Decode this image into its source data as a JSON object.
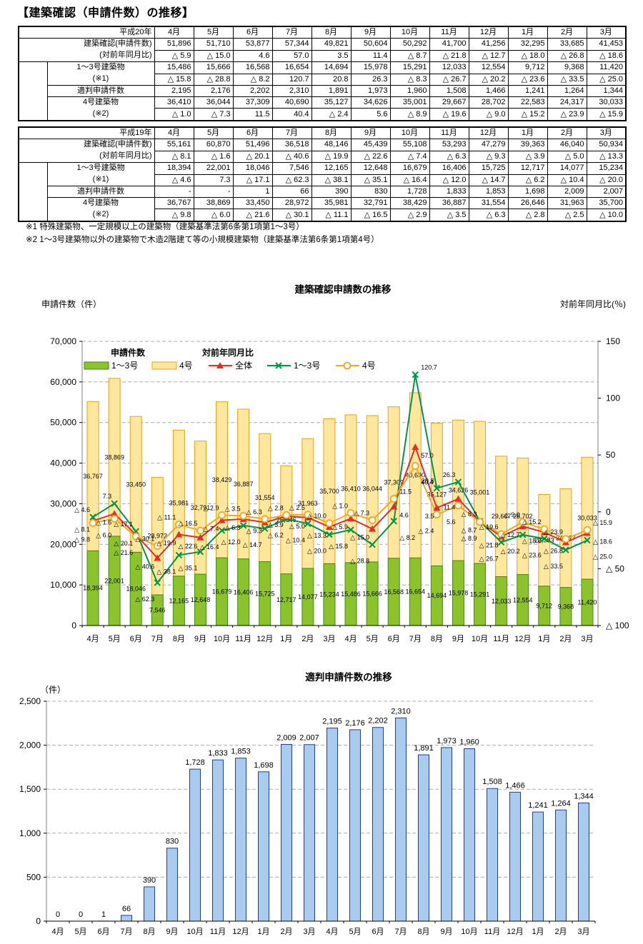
{
  "page_title": "【建築確認（申請件数）の推移】",
  "months": [
    "4月",
    "5月",
    "6月",
    "7月",
    "8月",
    "9月",
    "10月",
    "11月",
    "12月",
    "1月",
    "2月",
    "3月"
  ],
  "tables": [
    {
      "year_label": "平成20年",
      "labels": {
        "total": "建築確認(申請件数)",
        "total_yoy": "(対前年同月比)",
        "type13": "1～3号建築物",
        "type13_note": "(※1)",
        "tekihan": "適判申請件数",
        "type4": "4号建築物",
        "type4_note": "(※2)"
      },
      "total": [
        51896,
        51710,
        53877,
        57344,
        49821,
        50604,
        50292,
        41700,
        41256,
        32295,
        33685,
        41453
      ],
      "total_yoy": [
        -5.9,
        -15.0,
        4.6,
        57.0,
        3.5,
        11.4,
        -8.7,
        -21.8,
        -12.7,
        -18.0,
        -26.8,
        -18.6
      ],
      "type13": [
        15486,
        15666,
        16568,
        16654,
        14694,
        15978,
        15291,
        12033,
        12554,
        9712,
        9368,
        11420
      ],
      "type13_yoy": [
        -15.8,
        -28.8,
        -8.2,
        120.7,
        20.8,
        26.3,
        -8.3,
        -26.7,
        -20.2,
        -23.6,
        -33.5,
        -25.0
      ],
      "tekihan": [
        2195,
        2176,
        2202,
        2310,
        1891,
        1973,
        1960,
        1508,
        1466,
        1241,
        1264,
        1344
      ],
      "type4": [
        36410,
        36044,
        37309,
        40690,
        35127,
        34626,
        35001,
        29667,
        28702,
        22583,
        24317,
        30033
      ],
      "type4_yoy": [
        -1.0,
        -7.3,
        11.5,
        40.4,
        -2.4,
        5.6,
        -8.9,
        -19.6,
        -9.0,
        -15.2,
        -23.9,
        -15.9
      ]
    },
    {
      "year_label": "平成19年",
      "labels": {
        "total": "建築確認(申請件数)",
        "total_yoy": "(対前年同月比)",
        "type13": "1～3号建築物",
        "type13_note": "(※1)",
        "tekihan": "適判申請件数",
        "type4": "4号建築物",
        "type4_note": "(※2)"
      },
      "total": [
        55161,
        60870,
        51496,
        36518,
        48146,
        45439,
        55108,
        53293,
        47279,
        39363,
        46040,
        50934
      ],
      "total_yoy": [
        -8.1,
        -1.6,
        -20.1,
        -40.6,
        -19.9,
        -22.6,
        -7.4,
        -6.3,
        -9.3,
        -3.9,
        -5.0,
        -13.3
      ],
      "type13": [
        18394,
        22001,
        18046,
        7546,
        12165,
        12648,
        16679,
        16406,
        15725,
        12717,
        14077,
        15234
      ],
      "type13_yoy": [
        -4.6,
        7.3,
        -17.1,
        -62.3,
        -38.1,
        -35.1,
        -16.4,
        -12.0,
        -14.7,
        -6.2,
        -10.4,
        -20.0
      ],
      "tekihan": [
        "-",
        "-",
        1,
        66,
        390,
        830,
        1728,
        1833,
        1853,
        1698,
        2009,
        2007
      ],
      "type4": [
        36767,
        38869,
        33450,
        28972,
        35981,
        32791,
        38429,
        36887,
        31554,
        26646,
        31963,
        35700
      ],
      "type4_yoy": [
        -9.8,
        -6.0,
        -21.6,
        -30.1,
        -11.1,
        -16.5,
        -2.9,
        -3.5,
        -6.3,
        -2.8,
        -2.5,
        -10.0
      ]
    }
  ],
  "notes": [
    "※1 特殊建築物、一定規模以上の建築物（建築基準法第6条第1項第1～3号）",
    "※2 1～3号建築物以外の建築物で木造2階建て等の小規模建築物（建築基準法第6条第1項第4号）"
  ],
  "chart_data": [
    {
      "type": "combo_stacked_bar_line",
      "title": "建築確認申請数の推移",
      "left_axis": {
        "label": "申請件数（件）",
        "min": 0,
        "max": 70000,
        "step": 10000
      },
      "right_axis": {
        "label": "対前年同月比(％)",
        "min": -100,
        "max": 150,
        "step": 50
      },
      "legend_group_bars": "申請件数",
      "legend_group_lines": "対前年同月比",
      "categories": [
        "4月",
        "5月",
        "6月",
        "7月",
        "8月",
        "9月",
        "10月",
        "11月",
        "12月",
        "1月",
        "2月",
        "3月",
        "4月",
        "5月",
        "6月",
        "7月",
        "8月",
        "9月",
        "10月",
        "11月",
        "12月",
        "1月",
        "2月",
        "3月"
      ],
      "bar_series": [
        {
          "name": "1～3号",
          "color": "#8CC32A",
          "border": "#3E8A1E",
          "values": [
            18394,
            22001,
            18046,
            7546,
            12165,
            12648,
            16679,
            16406,
            15725,
            12717,
            14077,
            15234,
            15486,
            15666,
            16568,
            16654,
            14694,
            15978,
            15291,
            12033,
            12554,
            9712,
            9368,
            11420
          ]
        },
        {
          "name": "4号",
          "color": "#FFE89E",
          "border": "#E9A11B",
          "values": [
            36767,
            38869,
            33450,
            28972,
            35981,
            32791,
            38429,
            36887,
            31554,
            26646,
            31963,
            35700,
            36410,
            36044,
            37309,
            40690,
            35127,
            34626,
            35001,
            29667,
            28702,
            22583,
            24317,
            30033
          ]
        }
      ],
      "line_series": [
        {
          "name": "全体",
          "color": "#E62C23",
          "marker": "triangle",
          "values": [
            -8.1,
            -1.6,
            -20.1,
            -40.6,
            -19.9,
            -22.6,
            -7.4,
            -6.3,
            -9.3,
            -3.9,
            -5.0,
            -13.3,
            -5.9,
            -15.0,
            4.6,
            57.0,
            3.5,
            11.4,
            -8.7,
            -21.8,
            -12.7,
            -18.0,
            -26.8,
            -18.6
          ]
        },
        {
          "name": "1～3号",
          "color": "#00944A",
          "marker": "x",
          "values": [
            -4.6,
            7.3,
            -17.1,
            -62.3,
            -38.1,
            -35.1,
            -16.4,
            -12.0,
            -14.7,
            -6.2,
            -10.4,
            -20.0,
            -15.8,
            -28.8,
            -8.2,
            120.7,
            20.8,
            26.3,
            -8.3,
            -26.7,
            -20.2,
            -23.6,
            -33.5,
            -25.0
          ]
        },
        {
          "name": "4号",
          "color": "#F4A71C",
          "marker": "circle",
          "values": [
            -9.8,
            -6.0,
            -21.6,
            -30.1,
            -11.1,
            -16.5,
            -2.9,
            -3.5,
            -6.3,
            -2.8,
            -2.5,
            -10.0,
            -1.0,
            -7.3,
            11.5,
            40.4,
            -2.4,
            5.6,
            -8.9,
            -19.6,
            -9.0,
            -15.2,
            -23.9,
            -15.9
          ]
        }
      ]
    },
    {
      "type": "bar",
      "title": "適判申請件数の推移",
      "unit_label": "（件）",
      "ylim": [
        0,
        2500
      ],
      "step": 500,
      "bar_color": "#A9CBEF",
      "bar_border": "#1F4096",
      "categories": [
        "4月",
        "5月",
        "6月",
        "7月",
        "8月",
        "9月",
        "10月",
        "11月",
        "12月",
        "1月",
        "2月",
        "3月",
        "4月",
        "5月",
        "6月",
        "7月",
        "8月",
        "9月",
        "10月",
        "11月",
        "12月",
        "1月",
        "2月",
        "3月"
      ],
      "values": [
        0,
        0,
        1,
        66,
        390,
        830,
        1728,
        1833,
        1853,
        1698,
        2009,
        2007,
        2195,
        2176,
        2202,
        2310,
        1891,
        1973,
        1960,
        1508,
        1466,
        1241,
        1264,
        1344
      ]
    }
  ]
}
